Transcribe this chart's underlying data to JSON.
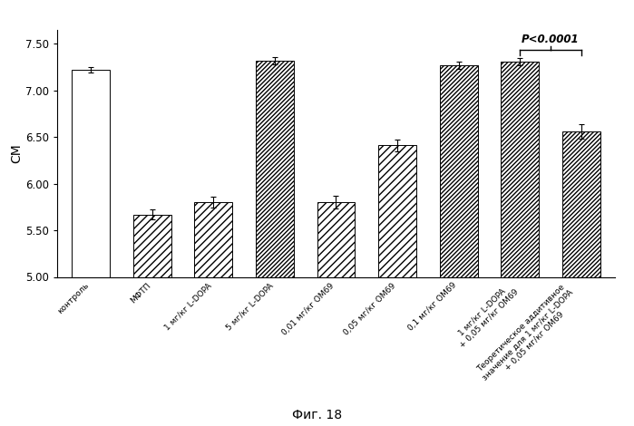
{
  "categories": [
    "контроль",
    "МФТП",
    "1 мг/кг L-DOPA",
    "5 мг/кг L-DOPA",
    "0,01 мг/кг OM69",
    "0,05 мг/кг OM69",
    "0,1 мг/кг OM69",
    "1 мг/кг L-DOPA\n+ 0,05 мг/кг OM69",
    "Теоретическое аддитивное\nзначение для 1 мг/кг L-DOPA\n+ 0,05 мг/кг OM69"
  ],
  "values": [
    7.22,
    5.67,
    5.8,
    7.32,
    5.8,
    6.41,
    7.27,
    7.31,
    6.56
  ],
  "errors": [
    0.03,
    0.05,
    0.06,
    0.04,
    0.07,
    0.06,
    0.04,
    0.04,
    0.08
  ],
  "hatch_patterns": [
    "",
    "//",
    "//",
    "////",
    "//",
    "//",
    "////",
    "////",
    "////"
  ],
  "ylim": [
    5.0,
    7.65
  ],
  "yticks": [
    5.0,
    5.5,
    6.0,
    6.5,
    7.0,
    7.5
  ],
  "ylabel": "СМ",
  "fig_label": "Фиг. 18",
  "p_label": "P<0.0001",
  "bracket_bars": [
    7,
    8
  ],
  "axis_fontsize": 9,
  "tick_fontsize": 8.5,
  "label_fontsize": 6.5
}
